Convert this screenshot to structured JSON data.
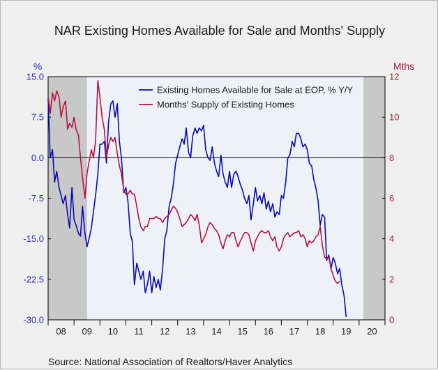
{
  "title": "NAR Existing Homes Available for Sale and Months' Supply",
  "source": "Source:  National Association of Realtors/Haver Analytics",
  "chart_data": {
    "type": "line",
    "title": "NAR Existing Homes Available for Sale and Months' Supply",
    "left_axis": {
      "unit": "%",
      "ylim": [
        -30,
        15
      ],
      "ticks": [
        "15.0",
        "7.5",
        "0.0",
        "-7.5",
        "-15.0",
        "-22.5",
        "-30.0"
      ],
      "color": "#2a2ab8"
    },
    "right_axis": {
      "unit": "Mths",
      "ylim": [
        0,
        12
      ],
      "ticks": [
        "12",
        "10",
        "8",
        "6",
        "4",
        "2",
        "0"
      ],
      "color": "#a0203a"
    },
    "x_labels": [
      "08",
      "09",
      "10",
      "11",
      "12",
      "13",
      "14",
      "15",
      "16",
      "17",
      "18",
      "19",
      "20"
    ],
    "x_range": [
      2008.0,
      2021.0
    ],
    "recession_shading": [
      [
        2008.0,
        2009.5
      ],
      [
        2020.17,
        2021.0
      ]
    ],
    "grid": false,
    "zero_line": true,
    "legend_position": "top-right",
    "colors": {
      "series1": "#0a0ab4",
      "series2": "#b4143c",
      "recession": "#c8c8c8",
      "background": "#eef2f8"
    },
    "series": [
      {
        "name": "Existing Homes Available for Sale at EOP, % Y/Y",
        "axis": "left",
        "points": [
          [
            2008.0,
            11.0
          ],
          [
            2008.08,
            0.0
          ],
          [
            2008.17,
            1.5
          ],
          [
            2008.25,
            -4.5
          ],
          [
            2008.33,
            -2.5
          ],
          [
            2008.42,
            -5.5
          ],
          [
            2008.5,
            -7.0
          ],
          [
            2008.58,
            -8.5
          ],
          [
            2008.67,
            -7.0
          ],
          [
            2008.75,
            -10.5
          ],
          [
            2008.83,
            -13.0
          ],
          [
            2008.92,
            -5.5
          ],
          [
            2009.0,
            -11.5
          ],
          [
            2009.08,
            -12.5
          ],
          [
            2009.17,
            -14.0
          ],
          [
            2009.25,
            -14.5
          ],
          [
            2009.33,
            -9.0
          ],
          [
            2009.42,
            -14.0
          ],
          [
            2009.5,
            -16.5
          ],
          [
            2009.58,
            -15.0
          ],
          [
            2009.67,
            -13.0
          ],
          [
            2009.75,
            -10.0
          ],
          [
            2009.83,
            -7.0
          ],
          [
            2009.92,
            -3.0
          ],
          [
            2010.0,
            2.5
          ],
          [
            2010.08,
            2.5
          ],
          [
            2010.17,
            3.0
          ],
          [
            2010.25,
            -1.0
          ],
          [
            2010.33,
            6.5
          ],
          [
            2010.42,
            10.0
          ],
          [
            2010.5,
            10.5
          ],
          [
            2010.58,
            7.5
          ],
          [
            2010.67,
            10.0
          ],
          [
            2010.75,
            3.0
          ],
          [
            2010.83,
            0.0
          ],
          [
            2010.92,
            -6.5
          ],
          [
            2011.0,
            -5.5
          ],
          [
            2011.08,
            -8.0
          ],
          [
            2011.17,
            -14.0
          ],
          [
            2011.25,
            -15.5
          ],
          [
            2011.33,
            -23.5
          ],
          [
            2011.42,
            -19.5
          ],
          [
            2011.5,
            -21.0
          ],
          [
            2011.58,
            -22.5
          ],
          [
            2011.67,
            -21.0
          ],
          [
            2011.75,
            -25.0
          ],
          [
            2011.83,
            -23.5
          ],
          [
            2011.92,
            -21.0
          ],
          [
            2012.0,
            -25.0
          ],
          [
            2012.08,
            -22.0
          ],
          [
            2012.17,
            -24.0
          ],
          [
            2012.25,
            -22.5
          ],
          [
            2012.33,
            -24.5
          ],
          [
            2012.42,
            -20.5
          ],
          [
            2012.5,
            -15.0
          ],
          [
            2012.58,
            -13.5
          ],
          [
            2012.67,
            -9.0
          ],
          [
            2012.75,
            -7.5
          ],
          [
            2012.83,
            -5.0
          ],
          [
            2012.92,
            -1.0
          ],
          [
            2013.0,
            0.5
          ],
          [
            2013.08,
            2.0
          ],
          [
            2013.17,
            3.5
          ],
          [
            2013.25,
            2.5
          ],
          [
            2013.33,
            5.5
          ],
          [
            2013.42,
            1.0
          ],
          [
            2013.5,
            0.0
          ],
          [
            2013.58,
            4.0
          ],
          [
            2013.67,
            5.5
          ],
          [
            2013.75,
            4.5
          ],
          [
            2013.83,
            5.5
          ],
          [
            2013.92,
            5.0
          ],
          [
            2014.0,
            6.0
          ],
          [
            2014.08,
            1.5
          ],
          [
            2014.17,
            0.0
          ],
          [
            2014.25,
            -0.5
          ],
          [
            2014.33,
            2.0
          ],
          [
            2014.42,
            -1.0
          ],
          [
            2014.5,
            -2.5
          ],
          [
            2014.58,
            -3.5
          ],
          [
            2014.67,
            0.5
          ],
          [
            2014.75,
            -3.0
          ],
          [
            2014.83,
            -4.5
          ],
          [
            2014.92,
            -5.5
          ],
          [
            2015.0,
            -2.5
          ],
          [
            2015.08,
            -5.5
          ],
          [
            2015.17,
            -3.0
          ],
          [
            2015.25,
            -2.5
          ],
          [
            2015.33,
            -3.5
          ],
          [
            2015.42,
            -5.0
          ],
          [
            2015.5,
            -6.0
          ],
          [
            2015.58,
            -7.5
          ],
          [
            2015.67,
            -8.5
          ],
          [
            2015.75,
            -7.0
          ],
          [
            2015.83,
            -11.5
          ],
          [
            2015.92,
            -8.5
          ],
          [
            2016.0,
            -5.5
          ],
          [
            2016.08,
            -8.0
          ],
          [
            2016.17,
            -7.0
          ],
          [
            2016.25,
            -8.5
          ],
          [
            2016.33,
            -6.5
          ],
          [
            2016.42,
            -9.5
          ],
          [
            2016.5,
            -8.0
          ],
          [
            2016.58,
            -10.0
          ],
          [
            2016.67,
            -8.5
          ],
          [
            2016.75,
            -11.0
          ],
          [
            2016.83,
            -10.0
          ],
          [
            2016.92,
            -10.5
          ],
          [
            2017.0,
            -7.0
          ],
          [
            2017.08,
            -7.5
          ],
          [
            2017.17,
            -4.5
          ],
          [
            2017.25,
            0.0
          ],
          [
            2017.33,
            0.5
          ],
          [
            2017.42,
            3.0
          ],
          [
            2017.5,
            2.0
          ],
          [
            2017.58,
            4.5
          ],
          [
            2017.67,
            4.5
          ],
          [
            2017.75,
            3.5
          ],
          [
            2017.83,
            2.0
          ],
          [
            2017.92,
            2.5
          ],
          [
            2018.0,
            1.5
          ],
          [
            2018.08,
            -1.0
          ],
          [
            2018.17,
            -1.5
          ],
          [
            2018.25,
            -4.0
          ],
          [
            2018.33,
            -5.5
          ],
          [
            2018.42,
            -8.0
          ],
          [
            2018.5,
            -12.5
          ],
          [
            2018.58,
            -10.5
          ],
          [
            2018.67,
            -11.0
          ],
          [
            2018.75,
            -19.0
          ],
          [
            2018.83,
            -18.0
          ],
          [
            2018.92,
            -20.5
          ],
          [
            2019.0,
            -18.5
          ],
          [
            2019.08,
            -19.5
          ],
          [
            2019.17,
            -21.5
          ],
          [
            2019.25,
            -20.5
          ],
          [
            2019.33,
            -23.5
          ],
          [
            2019.42,
            -25.5
          ],
          [
            2019.5,
            -29.5
          ]
        ]
      },
      {
        "name": "Months' Supply of Existing Homes",
        "axis": "right",
        "points": [
          [
            2008.0,
            11.0
          ],
          [
            2008.08,
            10.2
          ],
          [
            2008.17,
            11.2
          ],
          [
            2008.25,
            10.8
          ],
          [
            2008.33,
            11.3
          ],
          [
            2008.42,
            11.0
          ],
          [
            2008.5,
            10.0
          ],
          [
            2008.58,
            10.5
          ],
          [
            2008.67,
            10.8
          ],
          [
            2008.75,
            9.4
          ],
          [
            2008.83,
            9.7
          ],
          [
            2008.92,
            9.5
          ],
          [
            2009.0,
            10.0
          ],
          [
            2009.08,
            9.4
          ],
          [
            2009.17,
            9.1
          ],
          [
            2009.25,
            8.0
          ],
          [
            2009.33,
            7.0
          ],
          [
            2009.42,
            6.0
          ],
          [
            2009.5,
            7.2
          ],
          [
            2009.58,
            7.8
          ],
          [
            2009.67,
            8.4
          ],
          [
            2009.75,
            8.0
          ],
          [
            2009.83,
            8.8
          ],
          [
            2009.92,
            11.8
          ],
          [
            2010.0,
            11.0
          ],
          [
            2010.08,
            10.0
          ],
          [
            2010.17,
            9.4
          ],
          [
            2010.25,
            8.0
          ],
          [
            2010.33,
            8.6
          ],
          [
            2010.42,
            9.0
          ],
          [
            2010.5,
            8.8
          ],
          [
            2010.58,
            9.0
          ],
          [
            2010.67,
            8.2
          ],
          [
            2010.75,
            7.6
          ],
          [
            2010.83,
            7.2
          ],
          [
            2010.92,
            6.4
          ],
          [
            2011.0,
            6.2
          ],
          [
            2011.08,
            6.2
          ],
          [
            2011.17,
            6.4
          ],
          [
            2011.25,
            6.2
          ],
          [
            2011.33,
            6.2
          ],
          [
            2011.42,
            5.6
          ],
          [
            2011.5,
            5.0
          ],
          [
            2011.58,
            4.6
          ],
          [
            2011.67,
            4.4
          ],
          [
            2011.75,
            4.6
          ],
          [
            2011.83,
            4.6
          ],
          [
            2011.92,
            5.0
          ],
          [
            2012.0,
            5.0
          ],
          [
            2012.08,
            5.0
          ],
          [
            2012.17,
            5.1
          ],
          [
            2012.25,
            5.0
          ],
          [
            2012.33,
            5.0
          ],
          [
            2012.42,
            4.8
          ],
          [
            2012.5,
            5.0
          ],
          [
            2012.58,
            5.1
          ],
          [
            2012.67,
            5.2
          ],
          [
            2012.75,
            5.4
          ],
          [
            2012.83,
            5.6
          ],
          [
            2012.92,
            5.5
          ],
          [
            2013.0,
            5.3
          ],
          [
            2013.08,
            5.0
          ],
          [
            2013.17,
            4.6
          ],
          [
            2013.25,
            4.7
          ],
          [
            2013.33,
            4.8
          ],
          [
            2013.42,
            5.0
          ],
          [
            2013.5,
            5.2
          ],
          [
            2013.58,
            5.1
          ],
          [
            2013.67,
            4.9
          ],
          [
            2013.75,
            5.2
          ],
          [
            2013.83,
            4.7
          ],
          [
            2013.92,
            3.8
          ],
          [
            2014.0,
            4.0
          ],
          [
            2014.08,
            4.2
          ],
          [
            2014.17,
            4.6
          ],
          [
            2014.25,
            4.8
          ],
          [
            2014.33,
            4.7
          ],
          [
            2014.42,
            4.5
          ],
          [
            2014.5,
            4.4
          ],
          [
            2014.58,
            4.2
          ],
          [
            2014.67,
            3.8
          ],
          [
            2014.75,
            3.5
          ],
          [
            2014.83,
            3.9
          ],
          [
            2014.92,
            4.2
          ],
          [
            2015.0,
            4.1
          ],
          [
            2015.08,
            4.3
          ],
          [
            2015.17,
            4.3
          ],
          [
            2015.25,
            3.9
          ],
          [
            2015.33,
            3.6
          ],
          [
            2015.42,
            3.9
          ],
          [
            2015.5,
            4.1
          ],
          [
            2015.58,
            4.3
          ],
          [
            2015.67,
            4.3
          ],
          [
            2015.75,
            4.2
          ],
          [
            2015.83,
            3.8
          ],
          [
            2015.92,
            3.4
          ],
          [
            2016.0,
            3.9
          ],
          [
            2016.08,
            4.1
          ],
          [
            2016.17,
            4.3
          ],
          [
            2016.25,
            4.4
          ],
          [
            2016.33,
            4.3
          ],
          [
            2016.42,
            4.3
          ],
          [
            2016.5,
            4.4
          ],
          [
            2016.58,
            4.1
          ],
          [
            2016.67,
            3.9
          ],
          [
            2016.75,
            4.1
          ],
          [
            2016.83,
            3.6
          ],
          [
            2016.92,
            3.4
          ],
          [
            2017.0,
            3.6
          ],
          [
            2017.08,
            4.0
          ],
          [
            2017.17,
            4.2
          ],
          [
            2017.25,
            4.3
          ],
          [
            2017.33,
            4.1
          ],
          [
            2017.42,
            4.2
          ],
          [
            2017.5,
            4.3
          ],
          [
            2017.58,
            4.3
          ],
          [
            2017.67,
            4.4
          ],
          [
            2017.75,
            4.1
          ],
          [
            2017.83,
            4.2
          ],
          [
            2017.92,
            4.0
          ],
          [
            2018.0,
            3.6
          ],
          [
            2018.08,
            3.9
          ],
          [
            2018.17,
            3.8
          ],
          [
            2018.25,
            3.9
          ],
          [
            2018.33,
            4.1
          ],
          [
            2018.42,
            4.2
          ],
          [
            2018.5,
            4.6
          ],
          [
            2018.58,
            3.7
          ],
          [
            2018.67,
            3.1
          ],
          [
            2018.75,
            3.0
          ],
          [
            2018.83,
            3.1
          ],
          [
            2018.92,
            2.5
          ],
          [
            2019.0,
            2.2
          ],
          [
            2019.08,
            1.9
          ],
          [
            2019.17,
            1.8
          ],
          [
            2019.25,
            1.9
          ]
        ]
      }
    ]
  }
}
